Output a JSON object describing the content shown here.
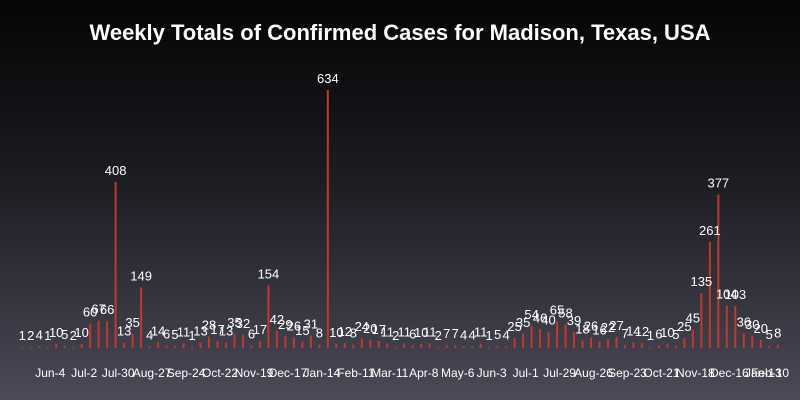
{
  "chart_data": {
    "type": "bar",
    "title": "Weekly Totals of Confirmed Cases for Madison, Texas, USA",
    "xlabel": "",
    "ylabel": "",
    "ylim": [
      0,
      634
    ],
    "grid": false,
    "legend": "none",
    "bar_color": "#c0392b",
    "x_tick_labels": [
      "Jun-4",
      "Jul-2",
      "Jul-30",
      "Aug-27",
      "Sep-24",
      "Oct-22",
      "Nov-19",
      "Dec-17",
      "Jan-14",
      "Feb-11",
      "Mar-11",
      "Apr-8",
      "May-6",
      "Jun-3",
      "Jul-1",
      "Jul-29",
      "Aug-26",
      "Sep-23",
      "Oct-21",
      "Nov-18",
      "Dec-16",
      "Jan-13",
      "Feb-10"
    ],
    "values": [
      1,
      2,
      4,
      1,
      10,
      5,
      2,
      10,
      60,
      67,
      66,
      408,
      13,
      35,
      149,
      4,
      14,
      6,
      5,
      11,
      1,
      13,
      28,
      17,
      13,
      35,
      32,
      6,
      17,
      154,
      42,
      29,
      26,
      15,
      31,
      8,
      634,
      10,
      12,
      8,
      24,
      20,
      17,
      11,
      2,
      11,
      6,
      10,
      11,
      2,
      7,
      7,
      4,
      4,
      11,
      1,
      5,
      4,
      25,
      35,
      54,
      46,
      40,
      65,
      58,
      39,
      18,
      26,
      16,
      22,
      27,
      7,
      14,
      12,
      1,
      6,
      10,
      5,
      25,
      45,
      135,
      261,
      377,
      104,
      103,
      36,
      30,
      20,
      5,
      8
    ]
  }
}
